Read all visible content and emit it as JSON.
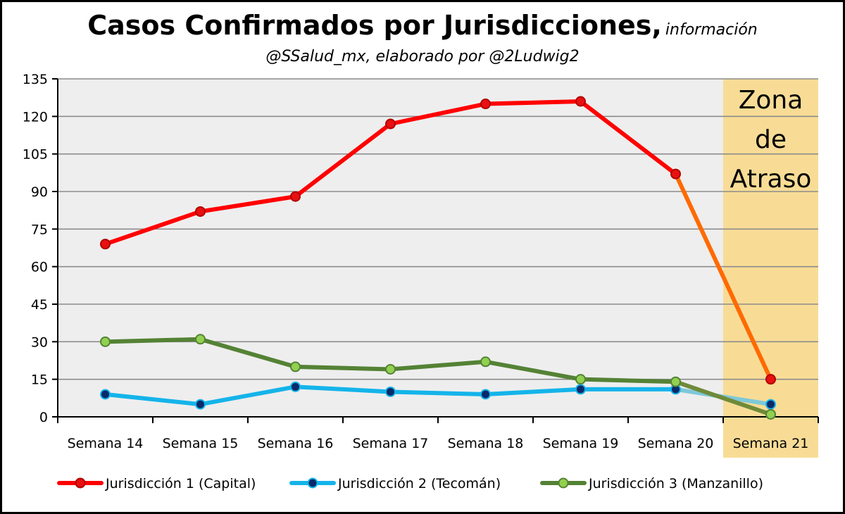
{
  "chart_data": {
    "type": "line",
    "title": "Casos Confirmados por Jurisdicciones,",
    "title_suffix": "información",
    "subtitle": "@SSalud_mx, elaborado por @2Ludwig2",
    "categories": [
      "Semana 14",
      "Semana 15",
      "Semana 16",
      "Semana 17",
      "Semana 18",
      "Semana 19",
      "Semana 20",
      "Semana 21"
    ],
    "ylim": [
      0,
      135
    ],
    "yticks": [
      0,
      15,
      30,
      45,
      60,
      75,
      90,
      105,
      120,
      135
    ],
    "grid": true,
    "legend_position": "bottom",
    "shaded_region": {
      "category": "Semana 21",
      "label_lines": [
        "Zona",
        "de",
        "Atraso"
      ],
      "color": "#f8dc96"
    },
    "series": [
      {
        "name": "Jurisdicción 1 (Capital)",
        "values": [
          69,
          82,
          88,
          117,
          125,
          126,
          97,
          15
        ],
        "line_color": "#ff0000",
        "marker_fill": "#e81010",
        "marker_edge": "#b00000",
        "last_segment_color": "#ff6a00"
      },
      {
        "name": "Jurisdicción 2 (Tecomán)",
        "values": [
          9,
          5,
          12,
          10,
          9,
          11,
          11,
          5
        ],
        "line_color": "#14b4ea",
        "marker_fill": "#0a2a6a",
        "marker_edge": "#14b4ea",
        "last_segment_color": "#7ec8d8"
      },
      {
        "name": "Jurisdicción 3 (Manzanillo)",
        "values": [
          30,
          31,
          20,
          19,
          22,
          15,
          14,
          1
        ],
        "line_color": "#548235",
        "marker_fill": "#92d050",
        "marker_edge": "#548235",
        "last_segment_color": "#6f8a3a"
      }
    ]
  },
  "colors": {
    "plot_background": "#eeeeee",
    "grid": "#8c8c8c",
    "axis": "#000000",
    "zone_tick_label": "#7f6000"
  }
}
